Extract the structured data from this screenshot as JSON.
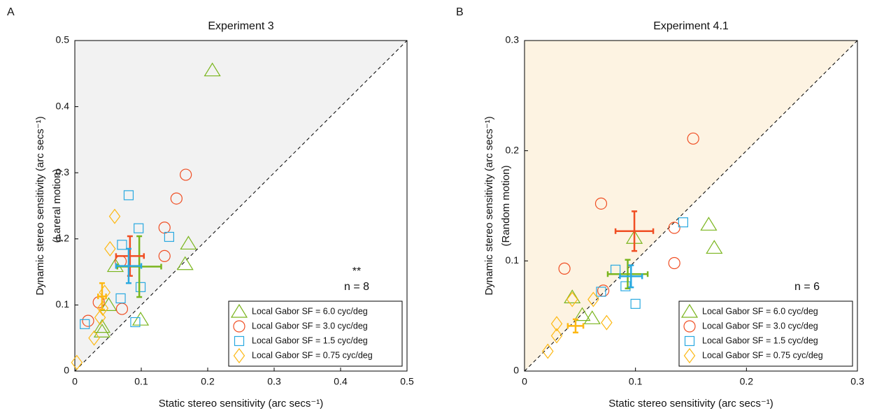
{
  "chart_data": [
    {
      "type": "scatter",
      "panel_label": "A",
      "title": "Experiment 3",
      "xlabel": "Static stereo sensitivity (arc secs⁻¹)",
      "ylabel": [
        "Dynamic stereo sensitivity (arc secs⁻¹)",
        "(Lareral motion)"
      ],
      "annotations": [
        "**",
        "n = 8"
      ],
      "shade_color": "#f2f2f2",
      "legend": "lower right",
      "xlim": [
        0,
        0.5
      ],
      "ylim": [
        0,
        0.5
      ],
      "xticks": [
        0,
        0.1,
        0.2,
        0.3,
        0.4,
        0.5
      ],
      "yticks": [
        0,
        0.1,
        0.2,
        0.3,
        0.4,
        0.5
      ],
      "series": [
        {
          "name": "Local Gabor SF = 6.0 cyc/deg",
          "color": "#7ab51d",
          "marker": "triangle",
          "x": [
            0.207,
            0.171,
            0.166,
            0.061,
            0.051,
            0.041,
            0.041,
            0.099
          ],
          "y": [
            0.455,
            0.193,
            0.162,
            0.159,
            0.1,
            0.067,
            0.06,
            0.078
          ],
          "mean_x": 0.097,
          "mean_y": 0.158,
          "mean_xerr": 0.033,
          "mean_yerr": 0.046
        },
        {
          "name": "Local Gabor SF = 3.0 cyc/deg",
          "color": "#f04e23",
          "marker": "circle",
          "x": [
            0.167,
            0.153,
            0.135,
            0.135,
            0.069,
            0.071,
            0.036,
            0.02
          ],
          "y": [
            0.297,
            0.261,
            0.217,
            0.174,
            0.166,
            0.094,
            0.104,
            0.076
          ],
          "mean_x": 0.083,
          "mean_y": 0.174,
          "mean_xerr": 0.021,
          "mean_yerr": 0.03
        },
        {
          "name": "Local Gabor SF = 1.5 cyc/deg",
          "color": "#29a9e0",
          "marker": "square",
          "x": [
            0.081,
            0.096,
            0.142,
            0.071,
            0.099,
            0.069,
            0.091,
            0.015
          ],
          "y": [
            0.266,
            0.216,
            0.203,
            0.191,
            0.127,
            0.11,
            0.074,
            0.071
          ],
          "mean_x": 0.081,
          "mean_y": 0.159,
          "mean_xerr": 0.019,
          "mean_yerr": 0.026
        },
        {
          "name": "Local Gabor SF = 0.75 cyc/deg",
          "color": "#fdb813",
          "marker": "diamond",
          "x": [
            0.06,
            0.053,
            0.045,
            0.038,
            0.029,
            0.003,
            0.042
          ],
          "y": [
            0.234,
            0.185,
            0.119,
            0.081,
            0.05,
            0.013,
            0.095
          ],
          "mean_x": 0.041,
          "mean_y": 0.113,
          "mean_xerr": 0.006,
          "mean_yerr": 0.02
        }
      ]
    },
    {
      "type": "scatter",
      "panel_label": "B",
      "title": "Experiment 4.1",
      "xlabel": "Static stereo sensitivity (arc secs⁻¹)",
      "ylabel": [
        "Dynamic stereo sensitivity (arc secs⁻¹)",
        "(Random motion)"
      ],
      "annotations": [
        "n = 6"
      ],
      "shade_color": "#fdf3e2",
      "legend": "lower right",
      "xlim": [
        0,
        0.3
      ],
      "ylim": [
        0,
        0.3
      ],
      "xticks": [
        0,
        0.1,
        0.2,
        0.3
      ],
      "yticks": [
        0,
        0.1,
        0.2,
        0.3
      ],
      "series": [
        {
          "name": "Local Gabor SF = 6.0 cyc/deg",
          "color": "#7ab51d",
          "marker": "triangle",
          "x": [
            0.166,
            0.171,
            0.099,
            0.043,
            0.052,
            0.061
          ],
          "y": [
            0.133,
            0.112,
            0.121,
            0.067,
            0.051,
            0.048
          ],
          "mean_x": 0.093,
          "mean_y": 0.088,
          "mean_xerr": 0.018,
          "mean_yerr": 0.013
        },
        {
          "name": "Local Gabor SF = 3.0 cyc/deg",
          "color": "#f04e23",
          "marker": "circle",
          "x": [
            0.152,
            0.069,
            0.036,
            0.135,
            0.135,
            0.071
          ],
          "y": [
            0.211,
            0.152,
            0.093,
            0.13,
            0.098,
            0.073
          ],
          "mean_x": 0.099,
          "mean_y": 0.127,
          "mean_xerr": 0.017,
          "mean_yerr": 0.018
        },
        {
          "name": "Local Gabor SF = 1.5 cyc/deg",
          "color": "#29a9e0",
          "marker": "square",
          "x": [
            0.143,
            0.082,
            0.091,
            0.069,
            0.1
          ],
          "y": [
            0.135,
            0.092,
            0.077,
            0.072,
            0.061
          ],
          "mean_x": 0.096,
          "mean_y": 0.086,
          "mean_xerr": 0.01,
          "mean_yerr": 0.01
        },
        {
          "name": "Local Gabor SF = 0.75 cyc/deg",
          "color": "#fdb813",
          "marker": "diamond",
          "x": [
            0.043,
            0.062,
            0.074,
            0.029,
            0.029,
            0.021
          ],
          "y": [
            0.065,
            0.065,
            0.044,
            0.043,
            0.032,
            0.018
          ],
          "mean_x": 0.046,
          "mean_y": 0.041,
          "mean_xerr": 0.007,
          "mean_yerr": 0.006
        }
      ]
    }
  ]
}
